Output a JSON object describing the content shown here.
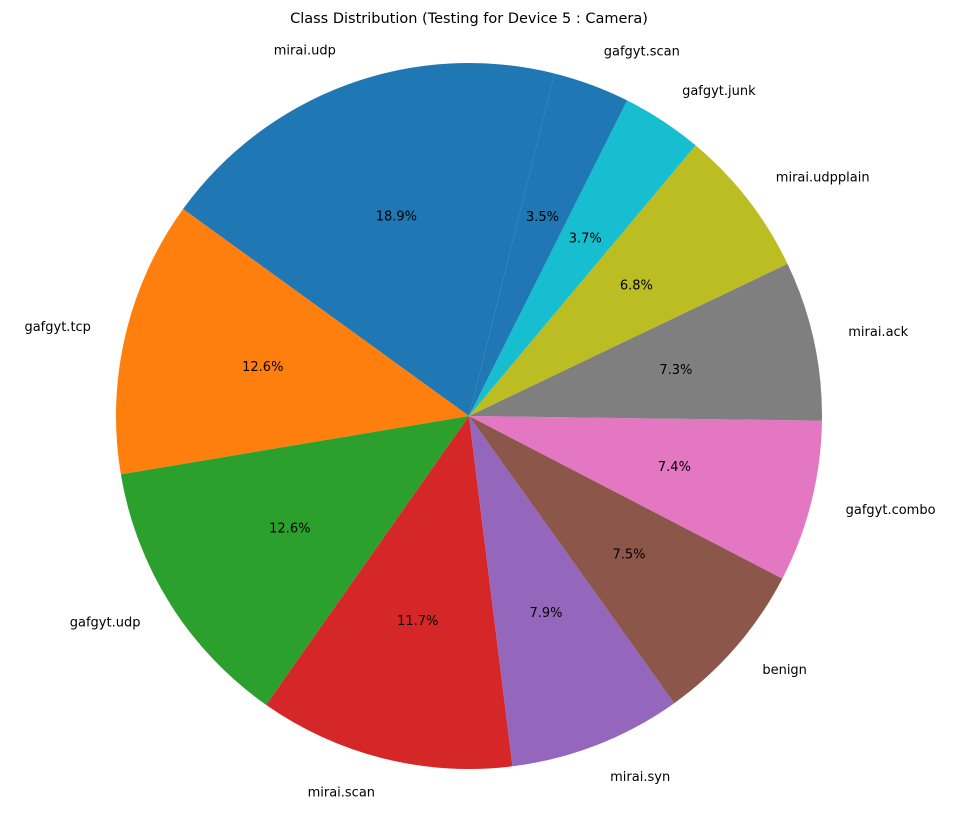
{
  "chart_data": {
    "type": "pie",
    "title": "Class Distribution (Testing for Device 5 : Camera)",
    "start_angle_deg": 76,
    "direction": "counterclockwise",
    "slices": [
      {
        "label": "mirai.udp",
        "pct_label": "18.9%",
        "value": 18.9,
        "color": "#1f77b4"
      },
      {
        "label": "gafgyt.tcp",
        "pct_label": "12.6%",
        "value": 12.6,
        "color": "#ff7f0e"
      },
      {
        "label": "gafgyt.udp",
        "pct_label": "12.6%",
        "value": 12.6,
        "color": "#2ca02c"
      },
      {
        "label": "mirai.scan",
        "pct_label": "11.7%",
        "value": 11.7,
        "color": "#d62728"
      },
      {
        "label": "mirai.syn",
        "pct_label": "7.9%",
        "value": 7.9,
        "color": "#9467bd"
      },
      {
        "label": "benign",
        "pct_label": "7.5%",
        "value": 7.5,
        "color": "#8c564b"
      },
      {
        "label": "gafgyt.combo",
        "pct_label": "7.4%",
        "value": 7.4,
        "color": "#e377c2"
      },
      {
        "label": "mirai.ack",
        "pct_label": "7.3%",
        "value": 7.3,
        "color": "#7f7f7f"
      },
      {
        "label": "mirai.udpplain",
        "pct_label": "6.8%",
        "value": 6.8,
        "color": "#bcbd22"
      },
      {
        "label": "gafgyt.junk",
        "pct_label": "3.7%",
        "value": 3.7,
        "color": "#17becf"
      },
      {
        "label": "gafgyt.scan",
        "pct_label": "3.5%",
        "value": 3.5,
        "color": "#1f77b4"
      }
    ]
  }
}
